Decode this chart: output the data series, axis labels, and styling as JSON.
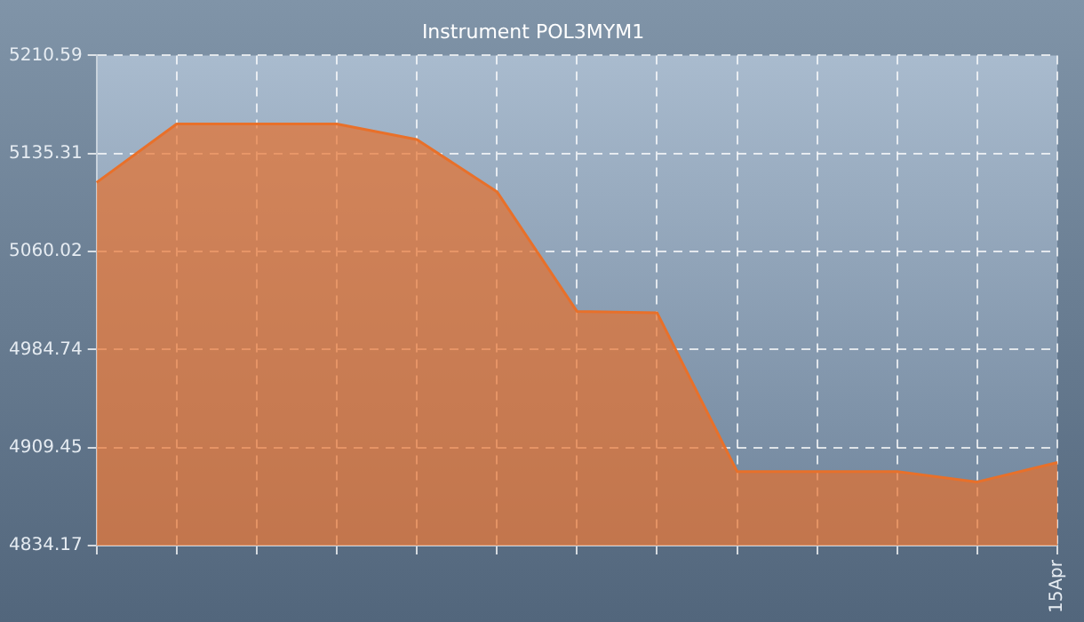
{
  "chart_data": {
    "type": "area",
    "title": "Instrument POL3MYM1",
    "categories": [
      null,
      null,
      null,
      null,
      null,
      null,
      null,
      null,
      null,
      null,
      null,
      null,
      "15Apr"
    ],
    "series": [
      {
        "color": "#e8702a",
        "values": [
          5113,
          5158,
          5158,
          5158,
          5146,
          5106,
          5014,
          5013,
          4891,
          4891,
          4891,
          4883,
          4898
        ]
      }
    ],
    "ylim": [
      4834.17,
      5210.59
    ],
    "yticks": [
      4834.17,
      4909.45,
      4984.74,
      5060.02,
      5135.31,
      5210.59
    ],
    "grid": true,
    "legend": false
  }
}
